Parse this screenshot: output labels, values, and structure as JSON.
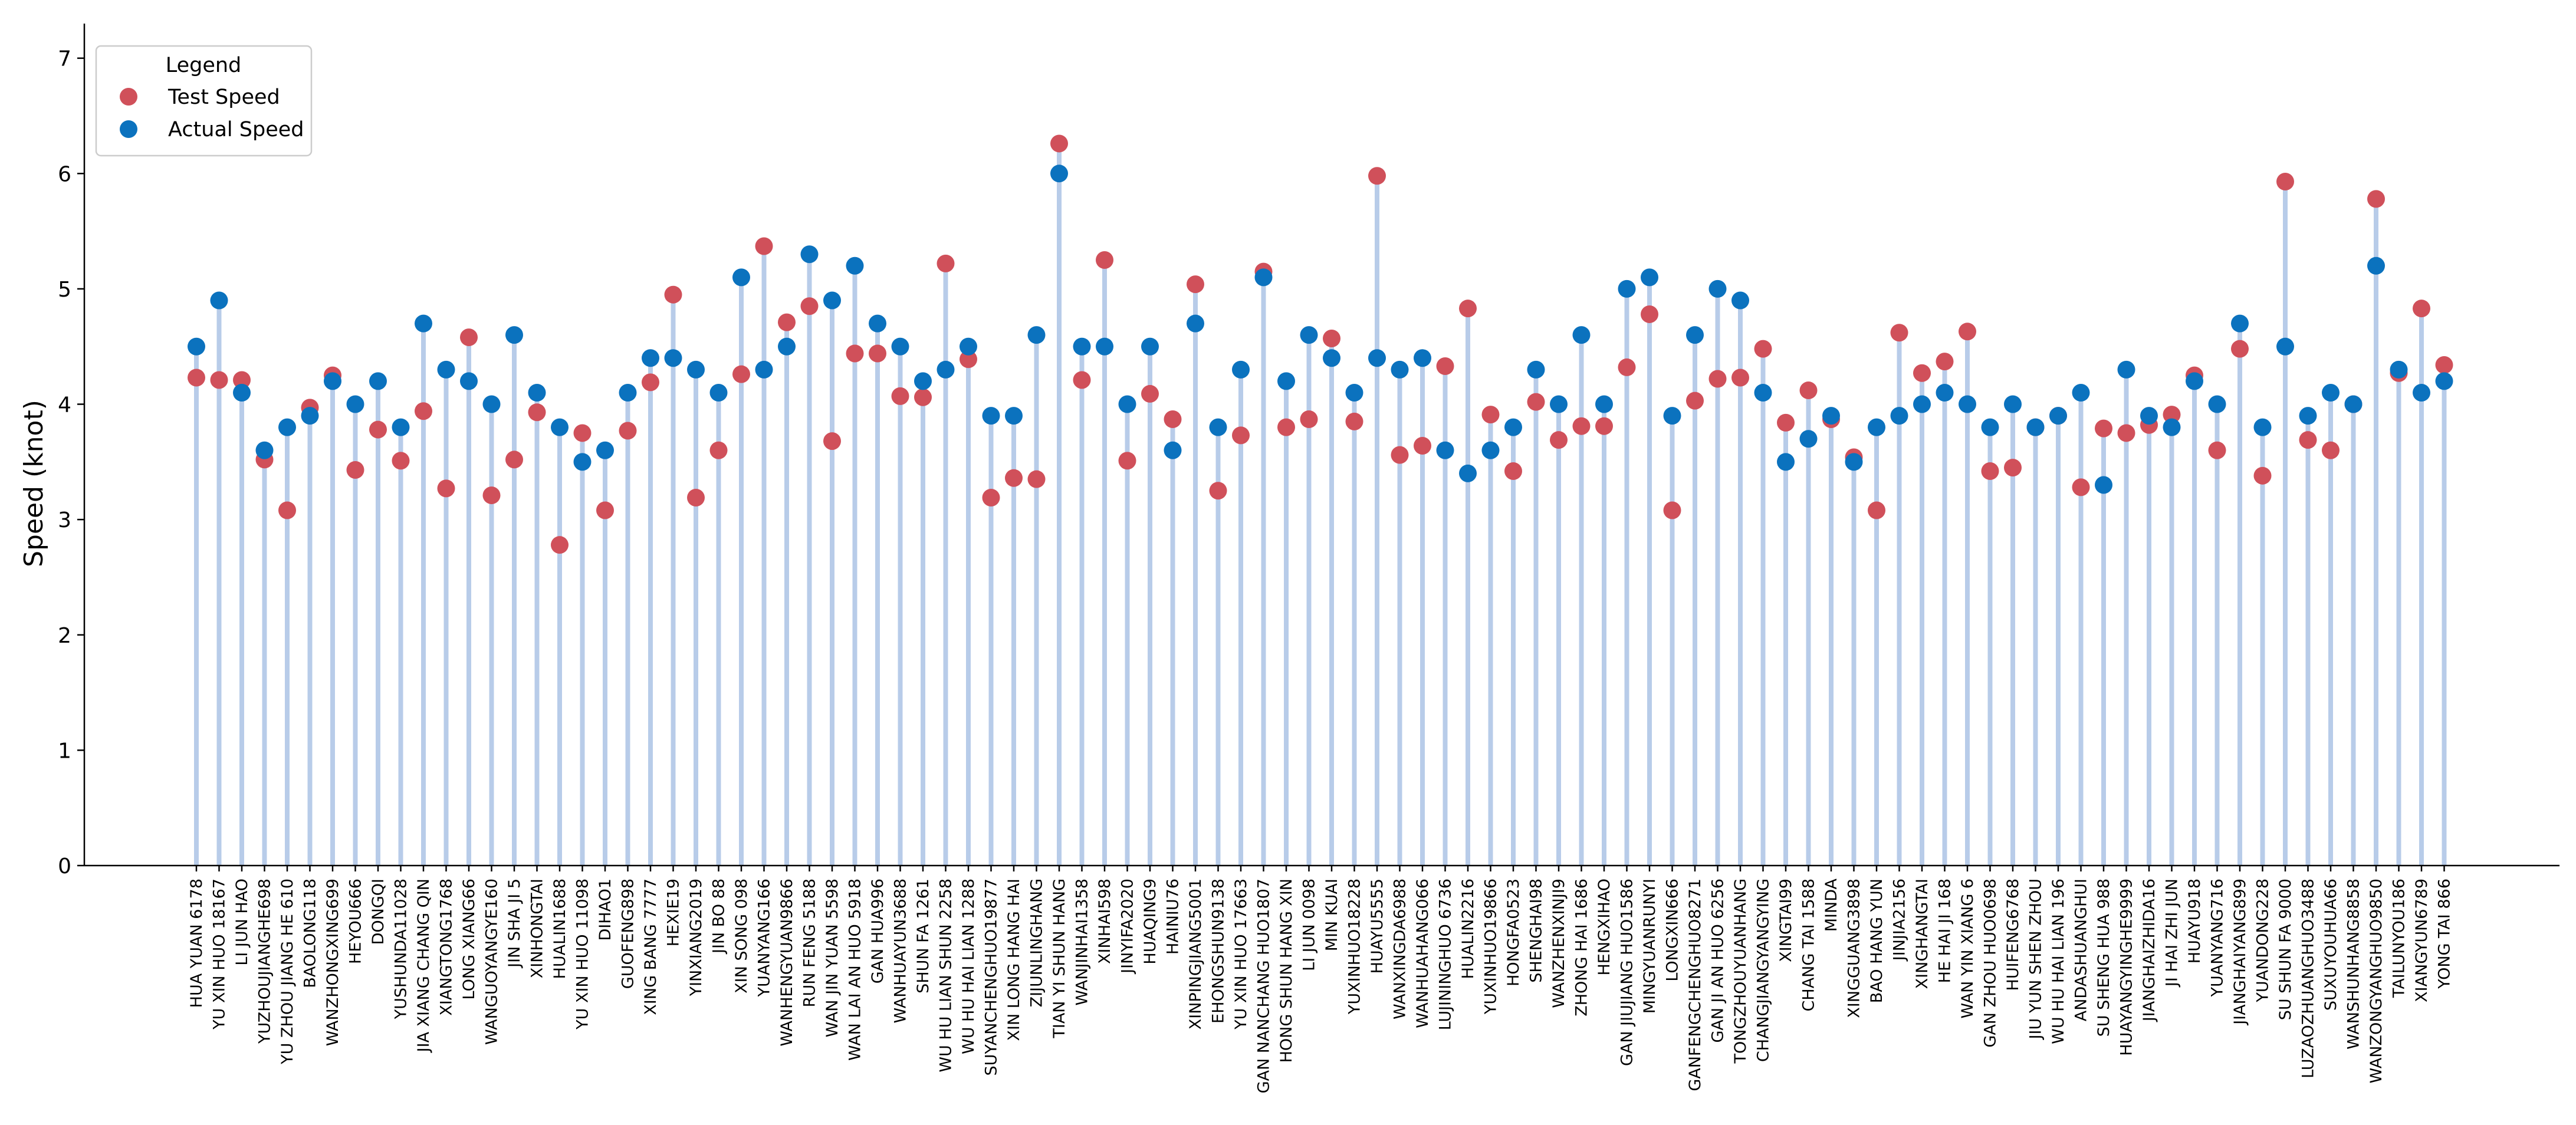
{
  "chart_data": {
    "type": "scatter",
    "title": "",
    "xlabel": "",
    "ylabel": "Speed (knot)",
    "ylim": [
      0,
      7.3
    ],
    "yticks": [
      0,
      1,
      2,
      3,
      4,
      5,
      6,
      7
    ],
    "grid": false,
    "legend": {
      "title": "Legend",
      "position": "top-left",
      "entries": [
        "Test Speed",
        "Actual Speed"
      ]
    },
    "colors": {
      "test": "#d0505a",
      "actual": "#0b72be",
      "stem": "#b8cce9"
    },
    "categories": [
      "HUA YUAN 6178",
      "YU XIN HUO 18167",
      "LI JUN HAO",
      "YUZHOUJIANGHE698",
      "YU ZHOU JIANG HE 610",
      "BAOLONG118",
      "WANZHONGXING699",
      "HEYOU666",
      "DONGQI",
      "YUSHUNDA11028",
      "JIA XIANG CHANG QIN",
      "XIANGTONG1768",
      "LONG XIANG66",
      "WANGUOYANGYE160",
      "JIN SHA JI 5",
      "XINHONGTAI",
      "HUALIN1688",
      "YU XIN HUO 11098",
      "DIHAO1",
      "GUOFENG898",
      "XING BANG 7777",
      "HEXIE19",
      "YINXIANG2019",
      "JIN BO 88",
      "XIN SONG 098",
      "YUANYANG166",
      "WANHENGYUAN9866",
      "RUN FENG 5188",
      "WAN JIN YUAN 5598",
      "WAN LAI AN HUO 5918",
      "GAN HUA996",
      "WANHUAYUN3688",
      "SHUN FA 1261",
      "WU HU LIAN SHUN 2258",
      "WU HU HAI LIAN 1288",
      "SUYANCHENGHUO19877",
      "XIN LONG HANG HAI",
      "ZIJUNLINGHANG",
      "TIAN YI SHUN HANG",
      "WANJINHAI1358",
      "XINHAI598",
      "JINYIFA2020",
      "HUAQING9",
      "HAINIU76",
      "XINPINGJIANG5001",
      "EHONGSHUN9138",
      "YU XIN HUO 17663",
      "GAN NANCHANG HUO1807",
      "HONG SHUN HANG XIN",
      "LI JUN 0098",
      "MIN KUAI",
      "YUXINHUO18228",
      "HUAYU5555",
      "WANXINGDA6988",
      "WANHUAHANG066",
      "LUJININGHUO 6736",
      "HUALIN2216",
      "YUXINHUO19866",
      "HONGFA0523",
      "SHENGHAI98",
      "WANZHENXINJI9",
      "ZHONG HAI 1686",
      "HENGXIHAO",
      "GAN JIUJIANG HUO1586",
      "MINGYUANRUNYI",
      "LONGXIN666",
      "GANFENGCHENGHUO8271",
      "GAN JI AN HUO 6256",
      "TONGZHOUYUANHANG",
      "CHANGJIANGYANGYING",
      "XINGTAI99",
      "CHANG TAI 1588",
      "MINDA",
      "XINGGUANG3898",
      "BAO HANG YUN",
      "JINJIA2156",
      "XINGHANGTAI",
      "HE HAI JI 168",
      "WAN YIN XIANG 6",
      "GAN ZHOU HUO0698",
      "HUIFENG6768",
      "JIU YUN SHEN ZHOU",
      "WU HU HAI LIAN 196",
      "ANDASHUANGHUI",
      "SU SHENG HUA 988",
      "HUAYANGYINGHE9999",
      "JIANGHAIZHIDA16",
      "JI HAI ZHI JUN",
      "HUAYU918",
      "YUANYANG716",
      "JIANGHAIYANG899",
      "YUANDONG228",
      "SU SHUN FA 9000",
      "LUZAOZHUANGHUO3488",
      "SUXUYOUHUA66",
      "WANSHUNHANG8858",
      "WANZONGYANGHUO9850",
      "TAILUNYOU186",
      "XIANGYUN6789",
      "YONG TAI 866"
    ],
    "series": [
      {
        "name": "Test Speed",
        "values": [
          4.23,
          4.21,
          4.21,
          3.52,
          3.08,
          3.97,
          4.25,
          3.43,
          3.78,
          3.51,
          3.94,
          3.27,
          4.58,
          3.21,
          3.52,
          3.93,
          2.78,
          3.75,
          3.08,
          3.77,
          4.19,
          4.95,
          3.19,
          3.6,
          4.26,
          5.37,
          4.71,
          4.85,
          3.68,
          4.44,
          4.44,
          4.07,
          4.06,
          5.22,
          4.39,
          3.19,
          3.36,
          3.35,
          6.26,
          4.21,
          5.25,
          3.51,
          4.09,
          3.87,
          5.04,
          3.25,
          3.73,
          5.15,
          3.8,
          3.87,
          4.57,
          3.85,
          5.98,
          3.56,
          3.64,
          4.33,
          4.83,
          3.91,
          3.42,
          4.02,
          3.69,
          3.81,
          3.81,
          4.32,
          4.78,
          3.08,
          4.03,
          4.22,
          4.23,
          4.48,
          3.84,
          4.12,
          3.87,
          3.54,
          3.08,
          4.62,
          4.27,
          4.37,
          4.63,
          3.42,
          3.45,
          3.8,
          3.9,
          3.28,
          3.79,
          3.75,
          3.82,
          3.91,
          4.25,
          3.6,
          4.48,
          3.38,
          5.93,
          3.69,
          3.6,
          4.0,
          5.78,
          4.27,
          4.83,
          4.34
        ]
      },
      {
        "name": "Actual Speed",
        "values": [
          4.5,
          4.9,
          4.1,
          3.6,
          3.8,
          3.9,
          4.2,
          4.0,
          4.2,
          3.8,
          4.7,
          4.3,
          4.2,
          4.0,
          4.6,
          4.1,
          3.8,
          3.5,
          3.6,
          4.1,
          4.4,
          4.4,
          4.3,
          4.1,
          5.1,
          4.3,
          4.5,
          5.3,
          4.9,
          5.2,
          4.7,
          4.5,
          4.2,
          4.3,
          4.5,
          3.9,
          3.9,
          4.6,
          6.0,
          4.5,
          4.5,
          4.0,
          4.5,
          3.6,
          4.7,
          3.8,
          4.3,
          5.1,
          4.2,
          4.6,
          4.4,
          4.1,
          4.4,
          4.3,
          4.4,
          3.6,
          3.4,
          3.6,
          3.8,
          4.3,
          4.0,
          4.6,
          4.0,
          5.0,
          5.1,
          3.9,
          4.6,
          5.0,
          4.9,
          4.1,
          3.5,
          3.7,
          3.9,
          3.5,
          3.8,
          3.9,
          4.0,
          4.1,
          4.0,
          3.8,
          4.0,
          3.8,
          3.9,
          4.1,
          3.3,
          4.3,
          3.9,
          3.8,
          4.2,
          4.0,
          4.7,
          3.8,
          4.5,
          3.9,
          4.1,
          4.0,
          5.2,
          4.3,
          4.1,
          4.2
        ]
      }
    ]
  }
}
